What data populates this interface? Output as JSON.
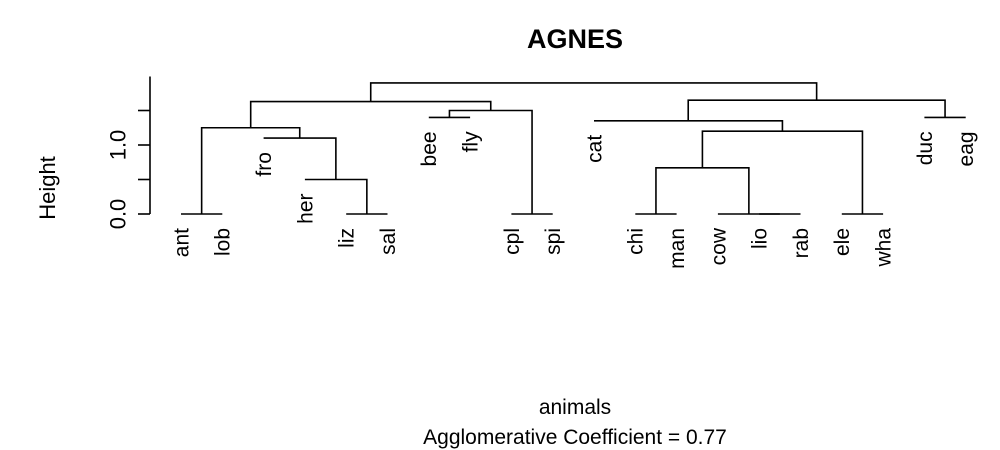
{
  "chart_data": {
    "type": "dendrogram",
    "title": "AGNES",
    "ylabel": "Height",
    "xlabel": "animals",
    "subtitle": "Agglomerative Coefficient =  0.77",
    "yticks": [
      0.0,
      0.5,
      1.0,
      1.5
    ],
    "ytick_labels": [
      "0.0",
      "",
      "1.0",
      ""
    ],
    "ylim": [
      0,
      2
    ],
    "leaves": [
      {
        "label": "ant",
        "h": 0.0
      },
      {
        "label": "lob",
        "h": 0.0
      },
      {
        "label": "fro",
        "h": 1.1
      },
      {
        "label": "her",
        "h": 0.5
      },
      {
        "label": "liz",
        "h": 0.0
      },
      {
        "label": "sal",
        "h": 0.0
      },
      {
        "label": "bee",
        "h": 1.4
      },
      {
        "label": "fly",
        "h": 1.4
      },
      {
        "label": "cpl",
        "h": 0.0
      },
      {
        "label": "spi",
        "h": 0.0
      },
      {
        "label": "cat",
        "h": 1.35
      },
      {
        "label": "chi",
        "h": 0.0
      },
      {
        "label": "man",
        "h": 0.0
      },
      {
        "label": "cow",
        "h": 0.0
      },
      {
        "label": "lio",
        "h": 0.0
      },
      {
        "label": "rab",
        "h": 0.0
      },
      {
        "label": "ele",
        "h": 0.0
      },
      {
        "label": "wha",
        "h": 0.0
      },
      {
        "label": "duc",
        "h": 1.4
      },
      {
        "label": "eag",
        "h": 1.4
      }
    ],
    "merges": [
      {
        "a": {
          "leaf": 0
        },
        "b": {
          "leaf": 1
        },
        "h": 0.0
      },
      {
        "a": {
          "leaf": 4
        },
        "b": {
          "leaf": 5
        },
        "h": 0.0
      },
      {
        "a": {
          "leaf": 3
        },
        "b": {
          "node": 1
        },
        "h": 0.5
      },
      {
        "a": {
          "leaf": 2
        },
        "b": {
          "node": 2
        },
        "h": 1.1
      },
      {
        "a": {
          "node": 0
        },
        "b": {
          "node": 3
        },
        "h": 1.25
      },
      {
        "a": {
          "leaf": 6
        },
        "b": {
          "leaf": 7
        },
        "h": 1.4
      },
      {
        "a": {
          "leaf": 8
        },
        "b": {
          "leaf": 9
        },
        "h": 0.0
      },
      {
        "a": {
          "node": 5
        },
        "b": {
          "node": 6
        },
        "h": 1.5
      },
      {
        "a": {
          "node": 4
        },
        "b": {
          "node": 7
        },
        "h": 1.63
      },
      {
        "a": {
          "leaf": 11
        },
        "b": {
          "leaf": 12
        },
        "h": 0.0
      },
      {
        "a": {
          "leaf": 14
        },
        "b": {
          "leaf": 15
        },
        "h": 0.0
      },
      {
        "a": {
          "leaf": 13
        },
        "b": {
          "node": 10
        },
        "h": 0.0
      },
      {
        "a": {
          "node": 9
        },
        "b": {
          "node": 11
        },
        "h": 0.67
      },
      {
        "a": {
          "leaf": 16
        },
        "b": {
          "leaf": 17
        },
        "h": 0.0
      },
      {
        "a": {
          "node": 12
        },
        "b": {
          "node": 13
        },
        "h": 1.2
      },
      {
        "a": {
          "leaf": 10
        },
        "b": {
          "node": 14
        },
        "h": 1.35
      },
      {
        "a": {
          "leaf": 18
        },
        "b": {
          "leaf": 19
        },
        "h": 1.4
      },
      {
        "a": {
          "node": 15
        },
        "b": {
          "node": 16
        },
        "h": 1.65
      },
      {
        "a": {
          "node": 8
        },
        "b": {
          "node": 17
        },
        "h": 1.9
      }
    ]
  }
}
